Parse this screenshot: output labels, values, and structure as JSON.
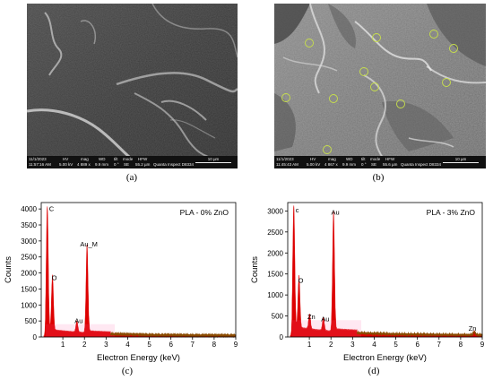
{
  "panels": {
    "a": {
      "label": "(a)",
      "databar": {
        "date_label": "11/1/2023",
        "time_label": "11:57:16 AM",
        "hv_header": "HV",
        "hv_value": "5.00 kV",
        "mag_header": "mag",
        "mag_value": "4 889 x",
        "wd_header": "WD",
        "wd_value": "9.9 mm",
        "tilt_header": "tilt",
        "tilt_value": "0 °",
        "mode_header": "mode",
        "mode_value": "SE",
        "hfw_header": "HFW",
        "hfw_value": "55.2 µm",
        "scale_label": "10 µm",
        "instrument": "Quanta Inspect D8334"
      }
    },
    "b": {
      "label": "(b)",
      "databar": {
        "date_label": "11/1/2023",
        "time_label": "11:45:43 AM",
        "hv_header": "HV",
        "hv_value": "5.00 kV",
        "mag_header": "mag",
        "mag_value": "4 867 x",
        "wd_header": "WD",
        "wd_value": "9.9 mm",
        "tilt_header": "tilt",
        "tilt_value": "0 °",
        "mode_header": "mode",
        "mode_value": "SE",
        "hfw_header": "HFW",
        "hfw_value": "55.6 µm",
        "scale_label": "10 µm",
        "instrument": "Quanta Inspect D8334"
      },
      "marker_color": "#c8e04a"
    },
    "c": {
      "label": "(c)"
    },
    "d": {
      "label": "(d)"
    }
  },
  "chart_data": [
    {
      "type": "area",
      "legend_text": "PLA - 0% ZnO",
      "xlabel": "Electron Energy (keV)",
      "ylabel": "Counts",
      "xlim": [
        0,
        9
      ],
      "ylim": [
        0,
        4200
      ],
      "xticks": [
        1,
        2,
        3,
        4,
        5,
        6,
        7,
        8,
        9
      ],
      "yticks": [
        0,
        500,
        1000,
        1500,
        2000,
        2500,
        3000,
        3500,
        4000
      ],
      "fill_color": "#dd0000",
      "line_color": "#8a4a00",
      "peaks": [
        {
          "label": "C",
          "energy": 0.28,
          "counts": 3850
        },
        {
          "label": "O",
          "energy": 0.52,
          "counts": 1700
        },
        {
          "label": "Au",
          "energy": 1.65,
          "counts": 350
        },
        {
          "label": "Au_M",
          "energy": 2.12,
          "counts": 2750
        }
      ]
    },
    {
      "type": "area",
      "legend_text": "PLA - 3% ZnO",
      "xlabel": "Electron Energy (keV)",
      "ylabel": "Counts",
      "xlim": [
        0,
        9
      ],
      "ylim": [
        0,
        3200
      ],
      "xticks": [
        1,
        2,
        3,
        4,
        5,
        6,
        7,
        8,
        9
      ],
      "yticks": [
        0,
        500,
        1000,
        1500,
        2000,
        2500,
        3000
      ],
      "fill_color": "#dd0000",
      "line_color": "#8a4a00",
      "peaks": [
        {
          "label": "c",
          "energy": 0.28,
          "counts": 2900
        },
        {
          "label": "O",
          "energy": 0.52,
          "counts": 1230
        },
        {
          "label": "Zn",
          "energy": 1.01,
          "counts": 360
        },
        {
          "label": "Au",
          "energy": 1.65,
          "counts": 310
        },
        {
          "label": "Au",
          "energy": 2.12,
          "counts": 2850
        },
        {
          "label": "Zn",
          "energy": 8.63,
          "counts": 90
        }
      ]
    }
  ]
}
